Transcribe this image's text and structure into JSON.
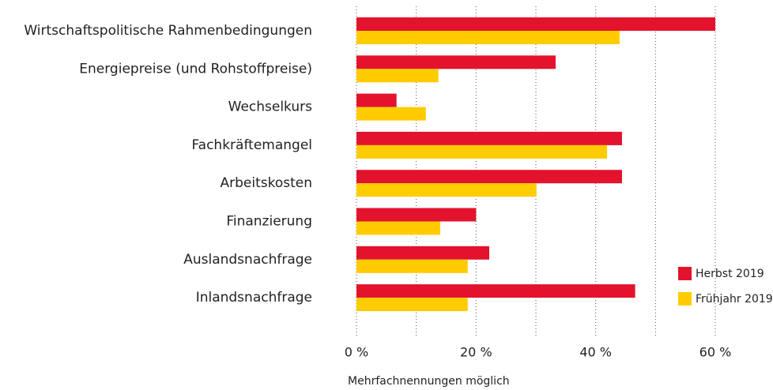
{
  "chart_data": {
    "type": "hbar",
    "categories": [
      "Wirtschaftspolitische Rahmenbedingungen",
      "Energiepreise (und Rohstoffpreise)",
      "Wechselkurs",
      "Fachkräftemangel",
      "Arbeitskosten",
      "Finanzierung",
      "Auslandsnachfrage",
      "Inlandsnachfrage"
    ],
    "series": [
      {
        "name": "Herbst 2019",
        "color": "#e3132d",
        "values": [
          60,
          33.3,
          6.7,
          44.4,
          44.4,
          20,
          22.2,
          46.6
        ]
      },
      {
        "name": "Frühjahr 2019",
        "color": "#ffcc00",
        "values": [
          44,
          13.7,
          11.6,
          41.9,
          30.1,
          14,
          18.6,
          18.6
        ]
      }
    ],
    "xlim": [
      0,
      70
    ],
    "xticks": [
      {
        "value": 0,
        "label": "0 %"
      },
      {
        "value": 20,
        "label": "20 %"
      },
      {
        "value": 40,
        "label": "40 %"
      },
      {
        "value": 60,
        "label": "60 %"
      }
    ],
    "minor_gridlines": [
      10,
      30,
      50
    ],
    "grid": true,
    "legend": "lower right",
    "note": "Mehrfachnennungen möglich"
  }
}
